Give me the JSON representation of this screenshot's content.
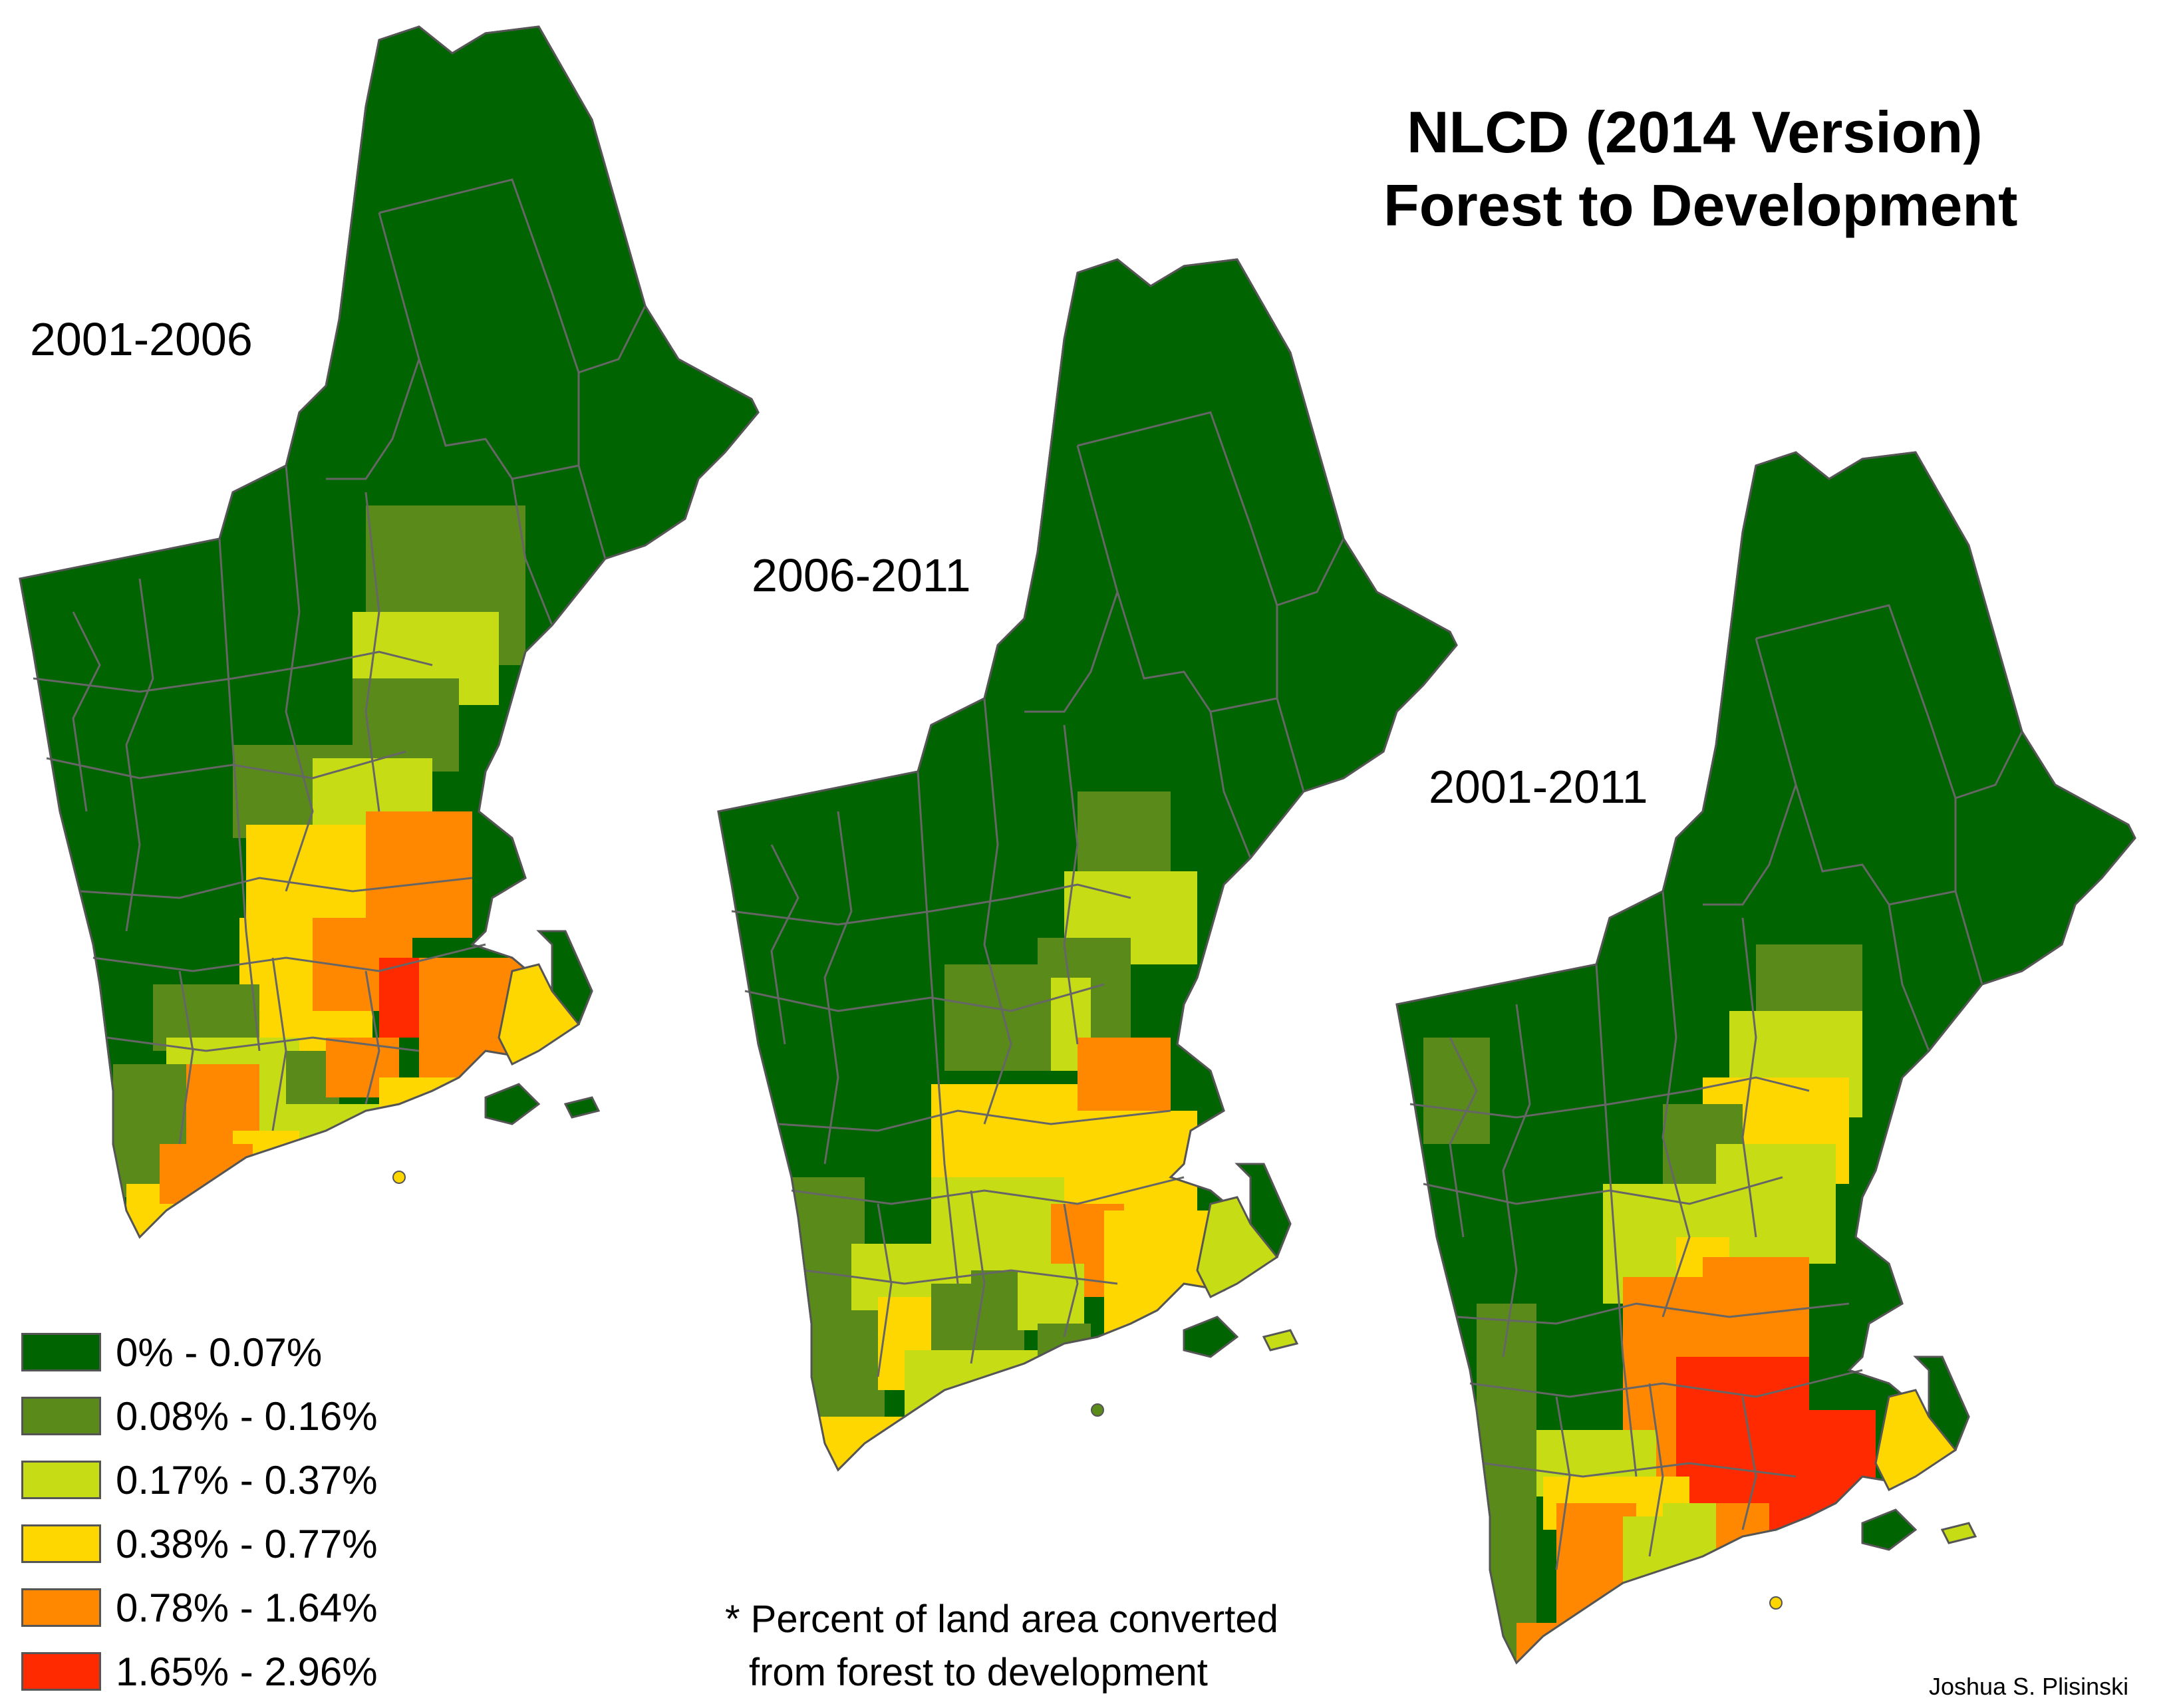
{
  "title": {
    "line1": "NLCD (2014 Version)",
    "line2": "Forest to Development"
  },
  "maps": [
    {
      "period": "2001-2006"
    },
    {
      "period": "2006-2011"
    },
    {
      "period": "2001-2011"
    }
  ],
  "legend": [
    {
      "label": "0% - 0.07%",
      "color": "#006400"
    },
    {
      "label": "0.08% - 0.16%",
      "color": "#5a8a1a"
    },
    {
      "label": "0.17% - 0.37%",
      "color": "#c6dc14"
    },
    {
      "label": "0.38% - 0.77%",
      "color": "#ffd700"
    },
    {
      "label": "0.78% - 1.64%",
      "color": "#ff8800"
    },
    {
      "label": "1.65% - 2.96%",
      "color": "#ff2a00"
    }
  ],
  "note": {
    "line1": "* Percent of land area converted",
    "line2": "from forest to development"
  },
  "credit": "Joshua S. Plisinski"
}
